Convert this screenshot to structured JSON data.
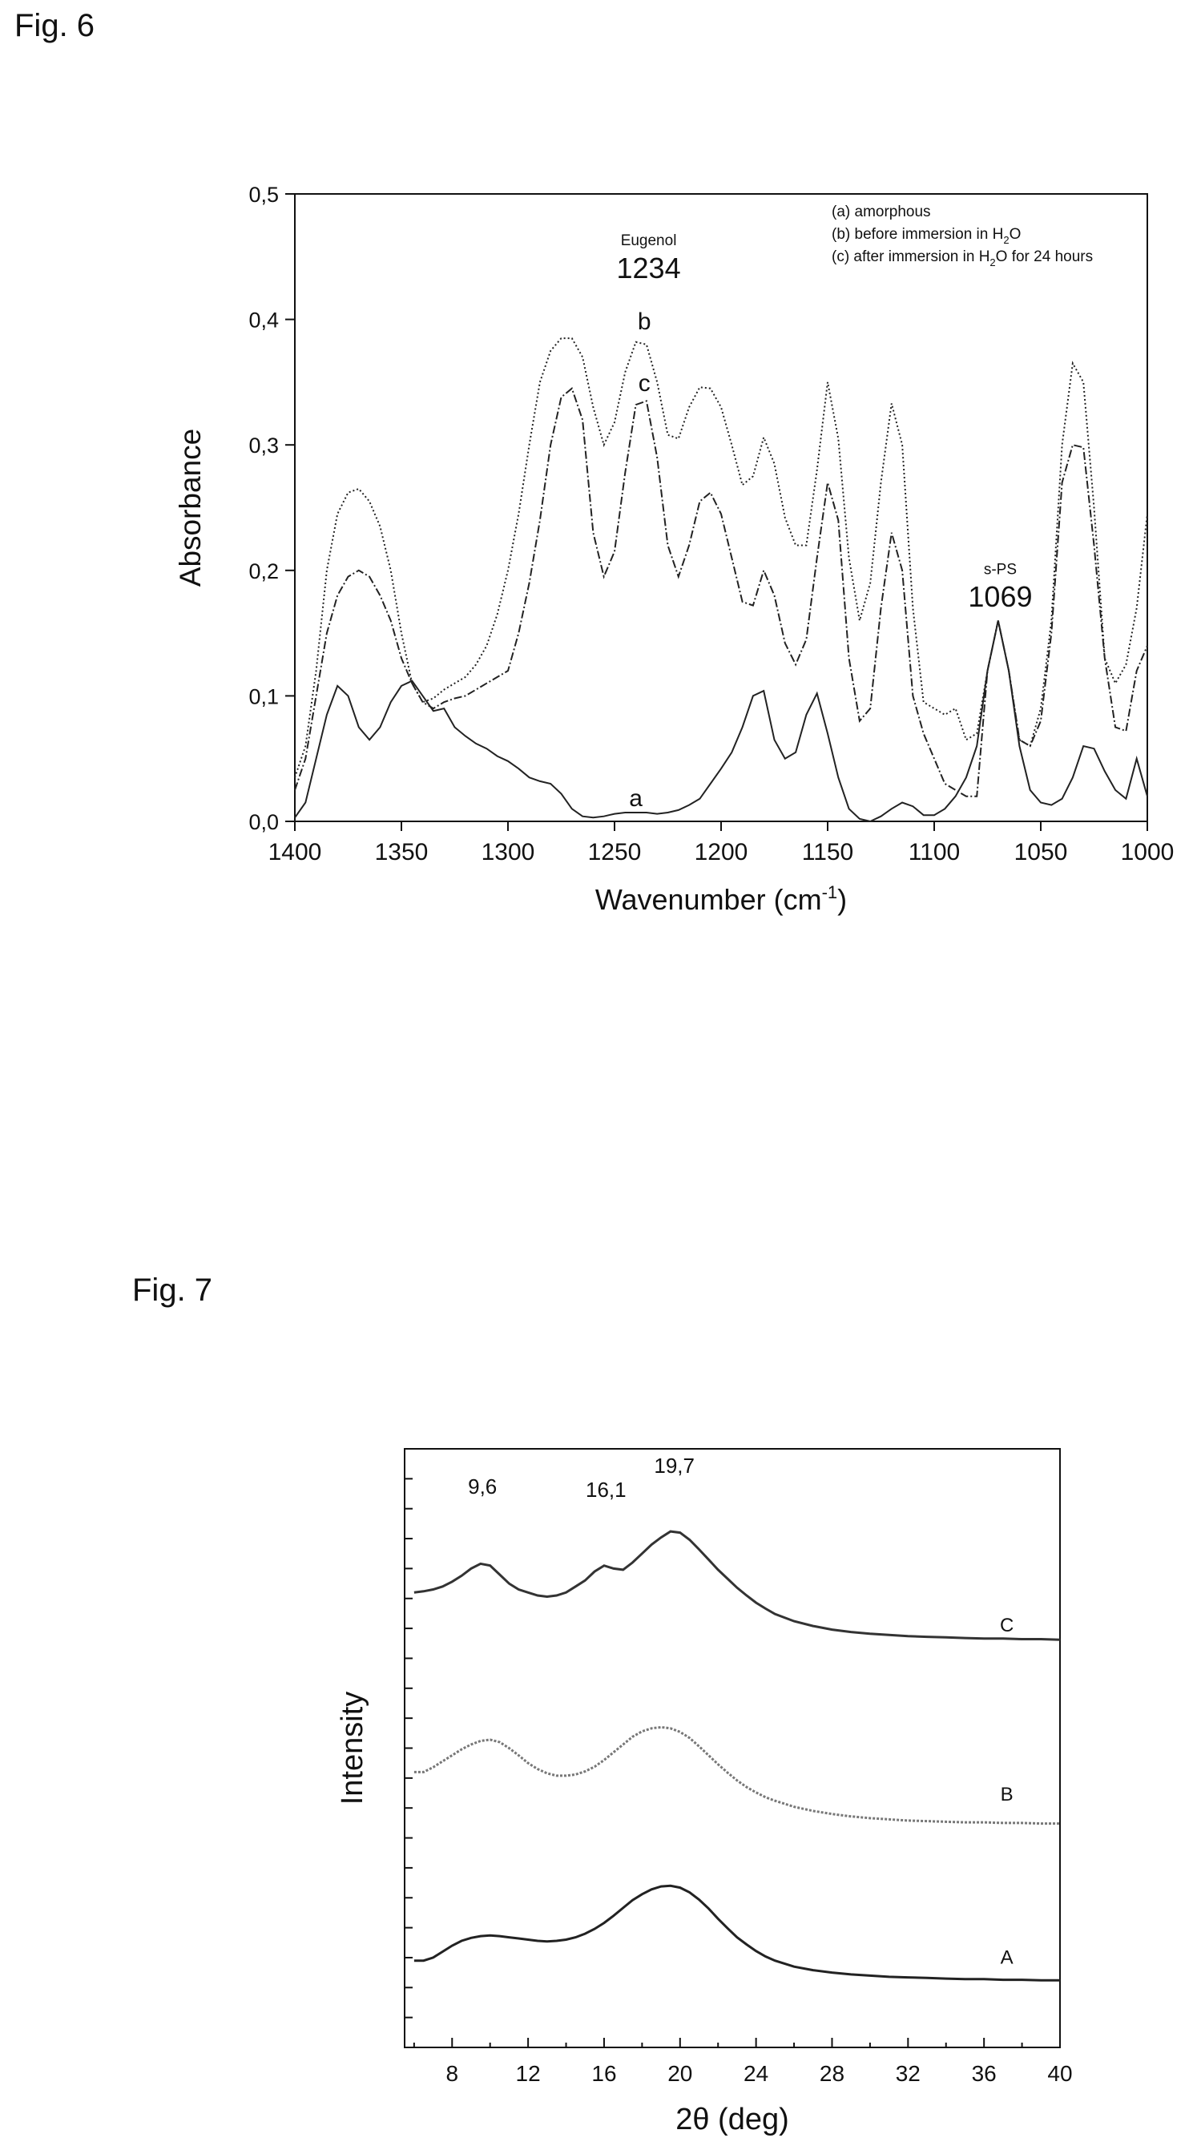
{
  "figures": {
    "fig6_label": "Fig. 6",
    "fig7_label": "Fig. 7"
  },
  "chart_data": [
    {
      "type": "line",
      "xlabel": "Wavenumber (cm-1)",
      "xlabel_main": "Wavenumber (cm",
      "xlabel_sup": "-1",
      "xlabel_end": ")",
      "ylabel": "Absorbance",
      "xlim": [
        1400,
        1000
      ],
      "ylim": [
        0.0,
        0.5
      ],
      "x_ticks": [
        "1400",
        "1350",
        "1300",
        "1250",
        "1200",
        "1150",
        "1100",
        "1050",
        "1000"
      ],
      "x_tick_values": [
        1400,
        1350,
        1300,
        1250,
        1200,
        1150,
        1100,
        1050,
        1000
      ],
      "y_ticks": [
        "0,0",
        "0,1",
        "0,2",
        "0,3",
        "0,4",
        "0,5"
      ],
      "y_tick_values": [
        0.0,
        0.1,
        0.2,
        0.3,
        0.4,
        0.5
      ],
      "grid": false,
      "legend_position": "top-right",
      "legend": [
        {
          "text": "(a) amorphous"
        },
        {
          "text": "(b) before immersion in H2O",
          "main": "(b) before immersion in H",
          "sub": "2",
          "end": "O"
        },
        {
          "text": "(c) after immersion in H2O for 24 hours",
          "main": "(c) after immersion in H",
          "sub": "2",
          "end": "O for 24 hours"
        }
      ],
      "annotations": [
        {
          "text": "Eugenol",
          "x": 1234,
          "y": 0.459,
          "size": "small"
        },
        {
          "text": "1234",
          "x": 1234,
          "y": 0.433,
          "size": "large"
        },
        {
          "text": "s-PS",
          "x": 1069,
          "y": 0.197,
          "size": "small"
        },
        {
          "text": "1069",
          "x": 1069,
          "y": 0.171,
          "size": "large"
        },
        {
          "text": "b",
          "x": 1236,
          "y": 0.392,
          "size": "medium"
        },
        {
          "text": "c",
          "x": 1236,
          "y": 0.343,
          "size": "medium"
        },
        {
          "text": "a",
          "x": 1240,
          "y": 0.012,
          "size": "medium"
        }
      ],
      "series": [
        {
          "label": "a",
          "style": "solid",
          "x": [
            1400,
            1395,
            1390,
            1385,
            1380,
            1375,
            1370,
            1365,
            1360,
            1355,
            1350,
            1345,
            1340,
            1335,
            1330,
            1325,
            1320,
            1315,
            1310,
            1305,
            1300,
            1295,
            1290,
            1285,
            1280,
            1275,
            1270,
            1265,
            1260,
            1255,
            1250,
            1245,
            1240,
            1235,
            1230,
            1225,
            1220,
            1215,
            1210,
            1205,
            1200,
            1195,
            1190,
            1185,
            1180,
            1175,
            1170,
            1165,
            1160,
            1155,
            1150,
            1145,
            1140,
            1135,
            1130,
            1125,
            1120,
            1115,
            1110,
            1105,
            1100,
            1095,
            1090,
            1085,
            1080,
            1075,
            1070,
            1065,
            1060,
            1055,
            1050,
            1045,
            1040,
            1035,
            1030,
            1025,
            1020,
            1015,
            1010,
            1005,
            1000
          ],
          "y": [
            0.003,
            0.015,
            0.05,
            0.085,
            0.108,
            0.1,
            0.075,
            0.065,
            0.075,
            0.095,
            0.108,
            0.112,
            0.1,
            0.088,
            0.09,
            0.075,
            0.068,
            0.062,
            0.058,
            0.052,
            0.048,
            0.042,
            0.035,
            0.032,
            0.03,
            0.022,
            0.01,
            0.004,
            0.003,
            0.004,
            0.006,
            0.007,
            0.007,
            0.007,
            0.006,
            0.007,
            0.009,
            0.013,
            0.018,
            0.03,
            0.042,
            0.055,
            0.075,
            0.1,
            0.104,
            0.065,
            0.05,
            0.055,
            0.085,
            0.102,
            0.07,
            0.035,
            0.01,
            0.002,
            0.0,
            0.004,
            0.01,
            0.015,
            0.012,
            0.005,
            0.005,
            0.01,
            0.02,
            0.035,
            0.06,
            0.12,
            0.16,
            0.12,
            0.06,
            0.025,
            0.015,
            0.013,
            0.018,
            0.035,
            0.06,
            0.058,
            0.04,
            0.025,
            0.018,
            0.05,
            0.02
          ]
        },
        {
          "label": "b",
          "style": "dotted",
          "x": [
            1400,
            1395,
            1390,
            1385,
            1380,
            1375,
            1370,
            1365,
            1360,
            1355,
            1350,
            1345,
            1340,
            1335,
            1330,
            1325,
            1320,
            1315,
            1310,
            1305,
            1300,
            1295,
            1290,
            1285,
            1280,
            1275,
            1270,
            1265,
            1260,
            1255,
            1250,
            1245,
            1240,
            1235,
            1230,
            1225,
            1220,
            1215,
            1210,
            1205,
            1200,
            1195,
            1190,
            1185,
            1180,
            1175,
            1170,
            1165,
            1160,
            1155,
            1150,
            1145,
            1140,
            1135,
            1130,
            1125,
            1120,
            1115,
            1110,
            1105,
            1100,
            1095,
            1090,
            1085,
            1080,
            1075,
            1070,
            1065,
            1060,
            1055,
            1050,
            1045,
            1040,
            1035,
            1030,
            1025,
            1020,
            1015,
            1010,
            1005,
            1000
          ],
          "y": [
            0.035,
            0.06,
            0.12,
            0.2,
            0.245,
            0.262,
            0.265,
            0.255,
            0.235,
            0.2,
            0.15,
            0.11,
            0.095,
            0.098,
            0.105,
            0.11,
            0.115,
            0.125,
            0.14,
            0.165,
            0.2,
            0.245,
            0.3,
            0.35,
            0.375,
            0.385,
            0.385,
            0.37,
            0.33,
            0.3,
            0.318,
            0.358,
            0.382,
            0.38,
            0.35,
            0.308,
            0.305,
            0.33,
            0.346,
            0.345,
            0.33,
            0.3,
            0.268,
            0.275,
            0.306,
            0.285,
            0.242,
            0.22,
            0.22,
            0.28,
            0.35,
            0.305,
            0.21,
            0.16,
            0.19,
            0.27,
            0.333,
            0.3,
            0.17,
            0.095,
            0.09,
            0.085,
            0.09,
            0.065,
            0.07,
            0.12,
            0.16,
            0.12,
            0.065,
            0.06,
            0.09,
            0.16,
            0.3,
            0.365,
            0.35,
            0.25,
            0.13,
            0.11,
            0.125,
            0.17,
            0.245
          ]
        },
        {
          "label": "c",
          "style": "dashdot",
          "x": [
            1400,
            1395,
            1390,
            1385,
            1380,
            1375,
            1370,
            1365,
            1360,
            1355,
            1350,
            1345,
            1340,
            1335,
            1330,
            1325,
            1320,
            1315,
            1310,
            1305,
            1300,
            1295,
            1290,
            1285,
            1280,
            1275,
            1270,
            1265,
            1260,
            1255,
            1250,
            1245,
            1240,
            1235,
            1230,
            1225,
            1220,
            1215,
            1210,
            1205,
            1200,
            1195,
            1190,
            1185,
            1180,
            1175,
            1170,
            1165,
            1160,
            1155,
            1150,
            1145,
            1140,
            1135,
            1130,
            1125,
            1120,
            1115,
            1110,
            1105,
            1100,
            1095,
            1090,
            1085,
            1080,
            1075,
            1070,
            1065,
            1060,
            1055,
            1050,
            1045,
            1040,
            1035,
            1030,
            1025,
            1020,
            1015,
            1010,
            1005,
            1000
          ],
          "y": [
            0.025,
            0.05,
            0.1,
            0.15,
            0.18,
            0.195,
            0.2,
            0.195,
            0.18,
            0.16,
            0.13,
            0.11,
            0.095,
            0.09,
            0.095,
            0.098,
            0.1,
            0.105,
            0.11,
            0.115,
            0.12,
            0.15,
            0.19,
            0.24,
            0.3,
            0.338,
            0.345,
            0.32,
            0.23,
            0.195,
            0.215,
            0.278,
            0.332,
            0.335,
            0.29,
            0.22,
            0.195,
            0.22,
            0.255,
            0.262,
            0.245,
            0.21,
            0.175,
            0.172,
            0.2,
            0.18,
            0.142,
            0.125,
            0.145,
            0.21,
            0.27,
            0.24,
            0.13,
            0.08,
            0.09,
            0.17,
            0.23,
            0.2,
            0.1,
            0.07,
            0.05,
            0.03,
            0.025,
            0.02,
            0.02,
            0.12,
            0.16,
            0.12,
            0.065,
            0.06,
            0.08,
            0.15,
            0.27,
            0.3,
            0.298,
            0.22,
            0.13,
            0.075,
            0.072,
            0.12,
            0.14
          ]
        }
      ]
    },
    {
      "type": "line",
      "xlabel": "2θ (deg)",
      "ylabel": "Intensity",
      "xlim": [
        5.5,
        40
      ],
      "ylim": [
        0,
        100
      ],
      "x_ticks": [
        "8",
        "12",
        "16",
        "20",
        "24",
        "28",
        "32",
        "36",
        "40"
      ],
      "x_tick_values": [
        8,
        12,
        16,
        20,
        24,
        28,
        32,
        36,
        40
      ],
      "y_minor_ticks": 20,
      "grid": false,
      "annotations": [
        {
          "text": "9,6",
          "x": 9.6,
          "y": 92.5
        },
        {
          "text": "16,1",
          "x": 16.1,
          "y": 92.0
        },
        {
          "text": "19,7",
          "x": 19.7,
          "y": 96.0
        }
      ],
      "series": [
        {
          "label": "A",
          "x": [
            6,
            6.5,
            7,
            7.5,
            8,
            8.5,
            9,
            9.5,
            10,
            10.5,
            11,
            11.5,
            12,
            12.5,
            13,
            13.5,
            14,
            14.5,
            15,
            15.5,
            16,
            16.5,
            17,
            17.5,
            18,
            18.5,
            19,
            19.5,
            20,
            20.5,
            21,
            21.5,
            22,
            22.5,
            23,
            23.5,
            24,
            24.5,
            25,
            26,
            27,
            28,
            29,
            30,
            31,
            32,
            33,
            34,
            35,
            36,
            37,
            38,
            39,
            40
          ],
          "y": [
            14.5,
            14.5,
            15.0,
            16.0,
            17.0,
            17.8,
            18.3,
            18.6,
            18.7,
            18.6,
            18.4,
            18.2,
            18.0,
            17.8,
            17.7,
            17.8,
            18.0,
            18.4,
            19.0,
            19.8,
            20.8,
            22.0,
            23.3,
            24.6,
            25.6,
            26.4,
            26.9,
            27.0,
            26.7,
            25.9,
            24.7,
            23.2,
            21.5,
            19.9,
            18.4,
            17.2,
            16.1,
            15.2,
            14.5,
            13.5,
            12.9,
            12.5,
            12.2,
            12.0,
            11.8,
            11.7,
            11.6,
            11.5,
            11.4,
            11.4,
            11.3,
            11.3,
            11.2,
            11.2
          ]
        },
        {
          "label": "B",
          "x": [
            6,
            6.5,
            7,
            7.5,
            8,
            8.5,
            9,
            9.5,
            10,
            10.5,
            11,
            11.5,
            12,
            12.5,
            13,
            13.5,
            14,
            14.5,
            15,
            15.5,
            16,
            16.5,
            17,
            17.5,
            18,
            18.5,
            19,
            19.5,
            20,
            20.5,
            21,
            21.5,
            22,
            22.5,
            23,
            23.5,
            24,
            24.5,
            25,
            26,
            27,
            28,
            29,
            30,
            31,
            32,
            33,
            34,
            35,
            36,
            37,
            38,
            39,
            40
          ],
          "y": [
            46.0,
            46.0,
            46.8,
            47.8,
            48.8,
            49.8,
            50.6,
            51.2,
            51.4,
            51.0,
            50.0,
            48.8,
            47.5,
            46.5,
            45.8,
            45.4,
            45.4,
            45.6,
            46.1,
            46.9,
            48.0,
            49.3,
            50.6,
            51.9,
            52.8,
            53.3,
            53.5,
            53.3,
            52.7,
            51.7,
            50.3,
            48.8,
            47.3,
            45.9,
            44.6,
            43.5,
            42.6,
            41.8,
            41.2,
            40.2,
            39.5,
            39.0,
            38.6,
            38.3,
            38.1,
            37.9,
            37.8,
            37.7,
            37.6,
            37.6,
            37.5,
            37.5,
            37.4,
            37.4
          ]
        },
        {
          "label": "C",
          "x": [
            6,
            6.5,
            7,
            7.5,
            8,
            8.5,
            9,
            9.5,
            10,
            10.5,
            11,
            11.5,
            12,
            12.5,
            13,
            13.5,
            14,
            14.5,
            15,
            15.5,
            16,
            16.5,
            17,
            17.5,
            18,
            18.5,
            19,
            19.5,
            20,
            20.5,
            21,
            21.5,
            22,
            22.5,
            23,
            23.5,
            24,
            24.5,
            25,
            26,
            27,
            28,
            29,
            30,
            31,
            32,
            33,
            34,
            35,
            36,
            37,
            38,
            39,
            40
          ],
          "y": [
            76.0,
            76.2,
            76.5,
            77.0,
            77.8,
            78.8,
            80.0,
            80.8,
            80.5,
            79.0,
            77.5,
            76.5,
            76.0,
            75.5,
            75.3,
            75.5,
            76.0,
            77.0,
            78.0,
            79.5,
            80.5,
            80.0,
            79.8,
            81.0,
            82.5,
            84.0,
            85.2,
            86.2,
            86.0,
            84.8,
            83.2,
            81.5,
            79.8,
            78.3,
            76.8,
            75.5,
            74.3,
            73.3,
            72.4,
            71.2,
            70.4,
            69.8,
            69.4,
            69.1,
            68.9,
            68.7,
            68.6,
            68.5,
            68.4,
            68.3,
            68.3,
            68.2,
            68.2,
            68.1
          ]
        }
      ],
      "curve_labels": [
        {
          "text": "C",
          "x": 37.2,
          "y": 69.5
        },
        {
          "text": "B",
          "x": 37.2,
          "y": 41.2
        },
        {
          "text": "A",
          "x": 37.2,
          "y": 14.0
        }
      ]
    }
  ]
}
